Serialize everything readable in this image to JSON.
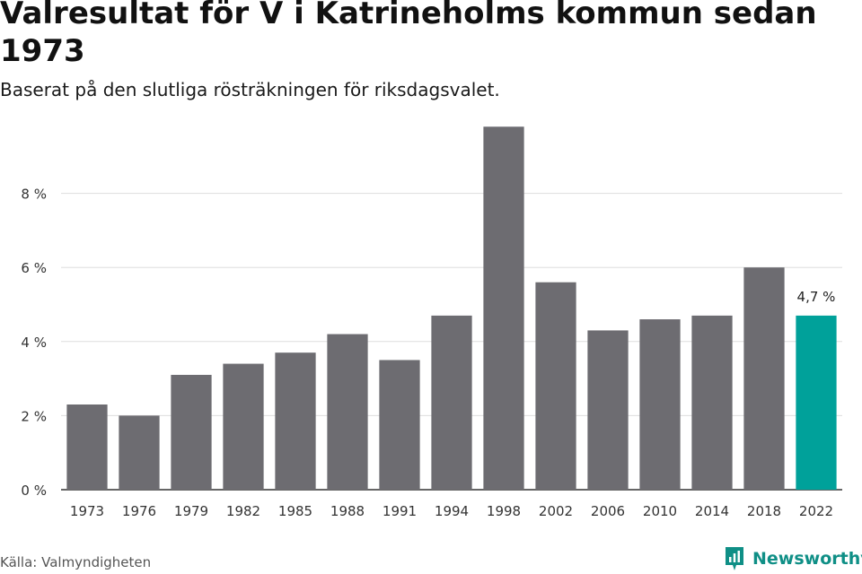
{
  "title": "Valresultat för V i Katrineholms kommun sedan 1973",
  "subtitle": "Baserat på den slutliga rösträkningen för riksdagsvalet.",
  "source": "Källa: Valmyndigheten",
  "brand": {
    "name": "Newsworthy",
    "icon": "newsworthy-logo-icon"
  },
  "colors": {
    "bar": "#6d6c71",
    "highlight": "#00a19a",
    "grid": "#dddddd",
    "axis": "#333333",
    "brand": "#0f8f86"
  },
  "chart_data": {
    "type": "bar",
    "categories": [
      "1973",
      "1976",
      "1979",
      "1982",
      "1985",
      "1988",
      "1991",
      "1994",
      "1998",
      "2002",
      "2006",
      "2010",
      "2014",
      "2018",
      "2022"
    ],
    "values": [
      2.3,
      2.0,
      3.1,
      3.4,
      3.7,
      4.2,
      3.5,
      4.7,
      9.8,
      5.6,
      4.3,
      4.6,
      4.7,
      6.0,
      4.7
    ],
    "ylim": [
      0,
      10
    ],
    "yticks": [
      0,
      2,
      4,
      6,
      8
    ],
    "ytick_labels": [
      "0 %",
      "2 %",
      "4 %",
      "6 %",
      "8 %"
    ],
    "highlight_index": 14,
    "annotation": "4,7 %",
    "grid": true
  }
}
